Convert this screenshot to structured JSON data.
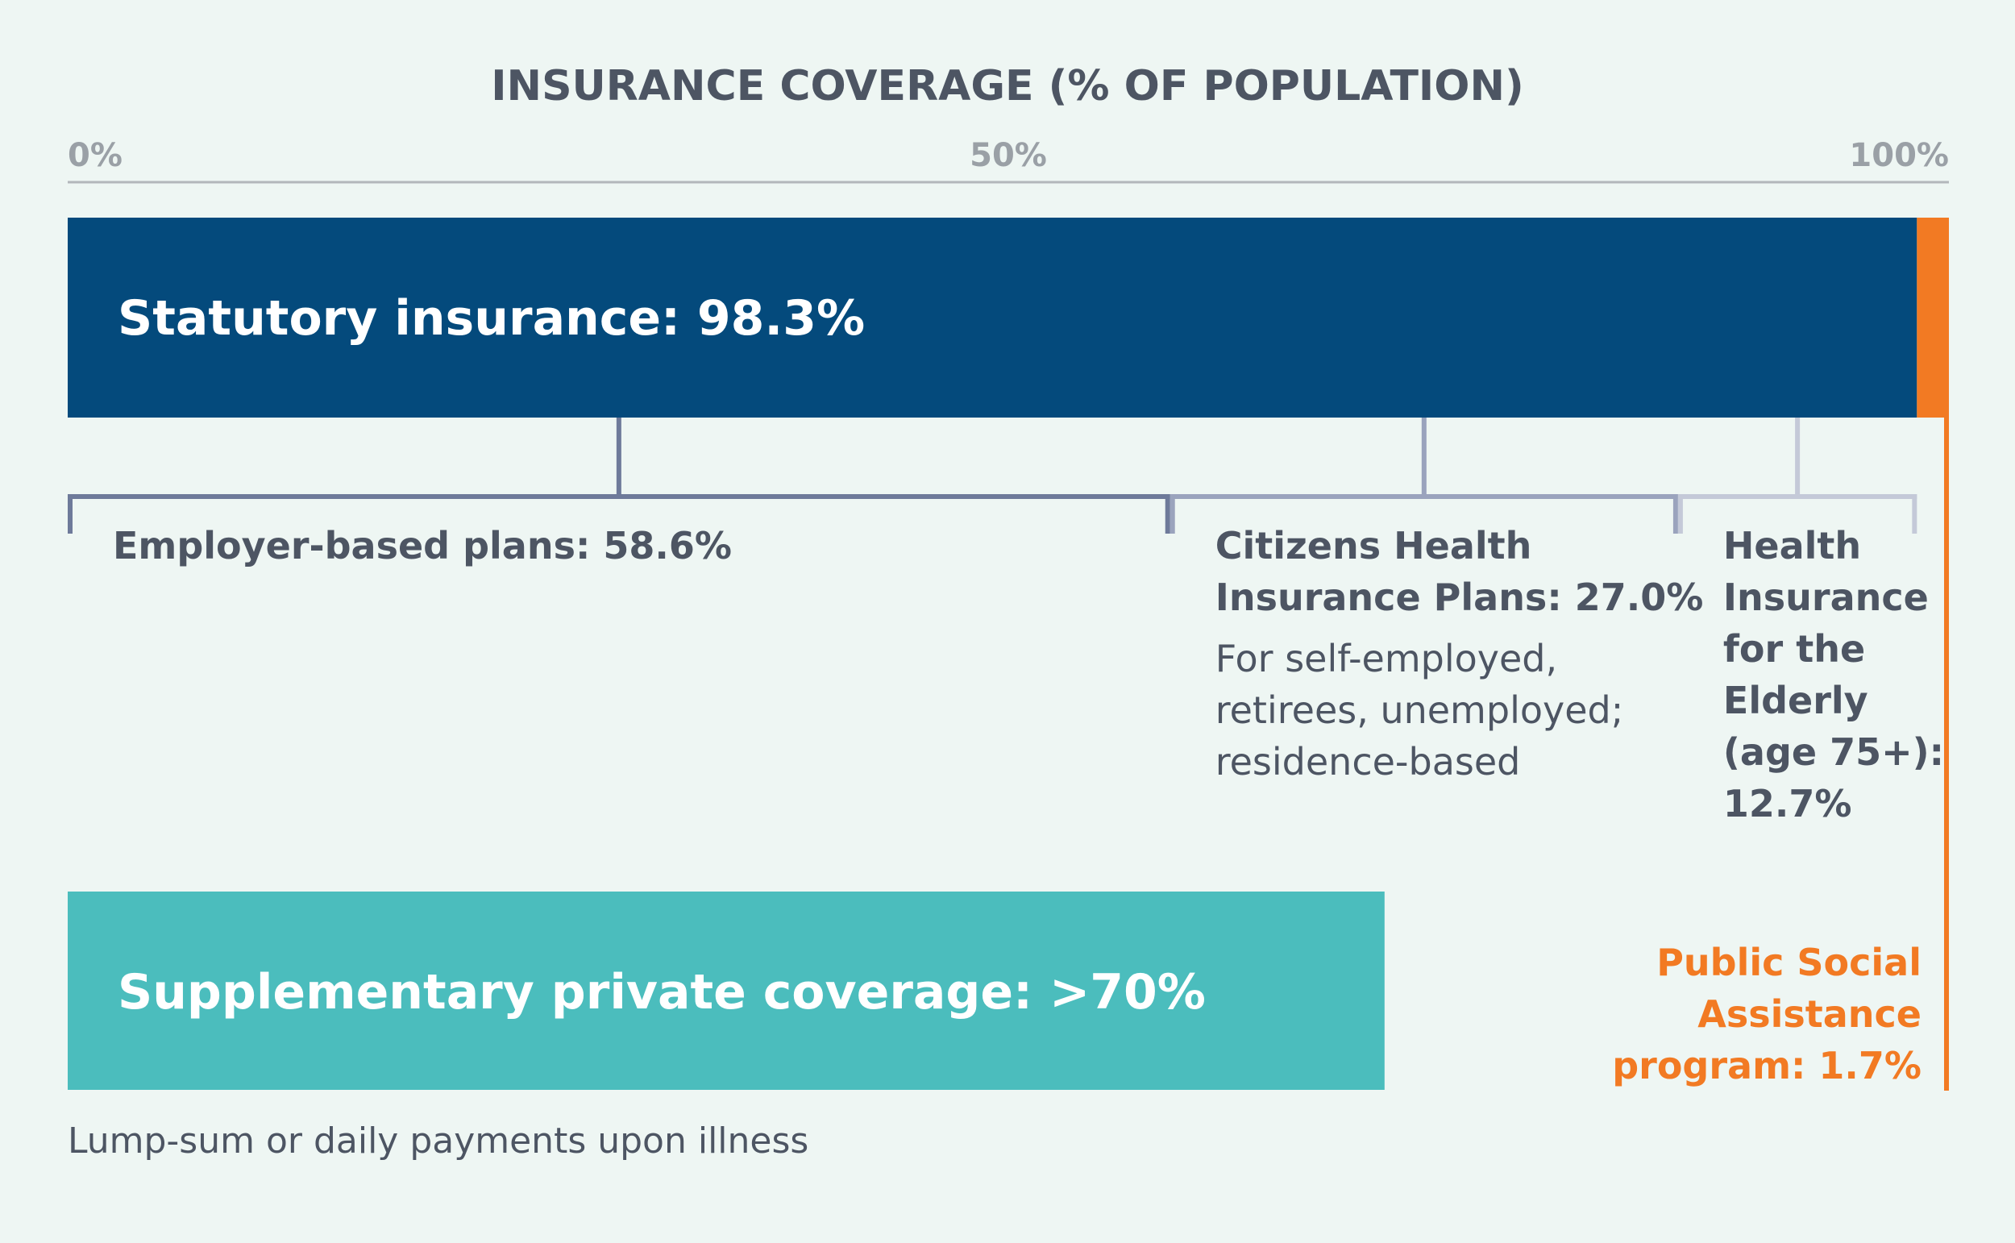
{
  "chart_data": {
    "type": "bar",
    "title": "INSURANCE COVERAGE (% OF POPULATION)",
    "axis": {
      "min": 0,
      "max": 100,
      "ticks": [
        {
          "value": 0,
          "label": "0%"
        },
        {
          "value": 50,
          "label": "50%"
        },
        {
          "value": 100,
          "label": "100%"
        }
      ]
    },
    "statutory": {
      "label": "Statutory insurance: 98.3%",
      "value": 98.3,
      "color": "#044a7c",
      "segments": [
        {
          "name": "employer-based-plans",
          "title_lines": [
            "Employer-based plans: 58.6%"
          ],
          "desc_lines": [],
          "value": 58.6,
          "color": "#6e7a9a"
        },
        {
          "name": "citizens-health-insurance-plans",
          "title_lines": [
            "Citizens Health",
            "Insurance Plans: 27.0%"
          ],
          "desc_lines": [
            "For self-employed,",
            "retirees, unemployed;",
            "residence-based"
          ],
          "value": 27.0,
          "color": "#9aa3bd"
        },
        {
          "name": "health-insurance-for-the-elderly",
          "title_lines": [
            "Health",
            "Insurance",
            "for the",
            "Elderly",
            "(age 75+):",
            "12.7%"
          ],
          "desc_lines": [],
          "value": 12.7,
          "color": "#c4c9d8"
        }
      ]
    },
    "public_assistance": {
      "label_lines": [
        "Public Social",
        "Assistance",
        "program: 1.7%"
      ],
      "value": 1.7,
      "color": "#f27a23"
    },
    "supplementary": {
      "label": "Supplementary private coverage: >70%",
      "value": 70,
      "note": "Lump-sum or daily payments upon illness",
      "color": "#4bbdbd"
    }
  }
}
